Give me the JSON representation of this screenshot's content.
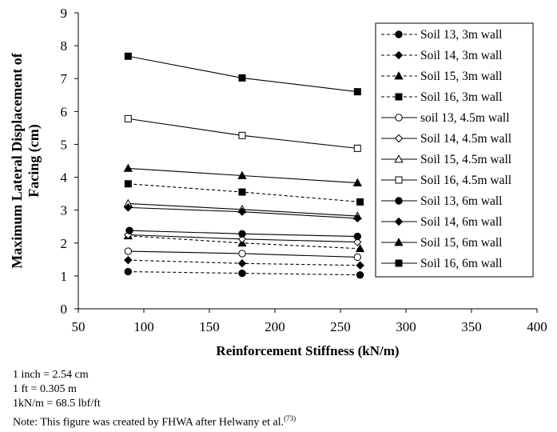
{
  "chart_data": {
    "type": "line",
    "xlabel": "Reinforcement Stiffness (kN/m)",
    "ylabel": "Maximum Lateral Displacement of Facing (cm)",
    "ylabel_line1": "Maximum Lateral Displacement of",
    "ylabel_line2": "Facing (cm)",
    "xlim": [
      50,
      400
    ],
    "ylim": [
      0,
      9
    ],
    "xticks": [
      50,
      100,
      150,
      200,
      250,
      300,
      350,
      400
    ],
    "yticks": [
      0,
      1,
      2,
      3,
      4,
      5,
      6,
      7,
      8,
      9
    ],
    "legend_position": "top-right",
    "series": [
      {
        "name": "Soil 13, 3m wall",
        "marker": "circle",
        "fill": true,
        "dash": true,
        "x": [
          88,
          175,
          265
        ],
        "y": [
          1.13,
          1.08,
          1.03
        ]
      },
      {
        "name": "Soil 14, 3m wall",
        "marker": "diamond",
        "fill": true,
        "dash": true,
        "x": [
          88,
          175,
          265
        ],
        "y": [
          1.48,
          1.38,
          1.32
        ]
      },
      {
        "name": "Soil 15, 3m wall",
        "marker": "triangle",
        "fill": true,
        "dash": true,
        "x": [
          88,
          175,
          265
        ],
        "y": [
          2.22,
          2.0,
          1.83
        ]
      },
      {
        "name": "Soil 16, 3m wall",
        "marker": "square",
        "fill": true,
        "dash": true,
        "x": [
          88,
          175,
          265
        ],
        "y": [
          3.8,
          3.55,
          3.25
        ]
      },
      {
        "name": "soil 13, 4.5m wall",
        "marker": "circle",
        "fill": false,
        "dash": false,
        "x": [
          88,
          175,
          263
        ],
        "y": [
          1.75,
          1.68,
          1.57
        ]
      },
      {
        "name": "Soil 14, 4.5m wall",
        "marker": "diamond",
        "fill": false,
        "dash": false,
        "x": [
          88,
          175,
          263
        ],
        "y": [
          2.25,
          2.12,
          2.03
        ]
      },
      {
        "name": "Soil 15, 4.5m wall",
        "marker": "triangle",
        "fill": false,
        "dash": false,
        "x": [
          88,
          175,
          263
        ],
        "y": [
          3.2,
          3.02,
          2.82
        ]
      },
      {
        "name": "Soil 16, 4.5m wall",
        "marker": "square",
        "fill": false,
        "dash": false,
        "x": [
          88,
          175,
          263
        ],
        "y": [
          5.78,
          5.27,
          4.88
        ]
      },
      {
        "name": "Soil 13, 6m wall",
        "marker": "circle",
        "fill": true,
        "dash": false,
        "x": [
          89,
          175,
          263
        ],
        "y": [
          2.38,
          2.28,
          2.2
        ]
      },
      {
        "name": "Soil 14, 6m wall",
        "marker": "diamond",
        "fill": true,
        "dash": false,
        "x": [
          88,
          175,
          263
        ],
        "y": [
          3.08,
          2.95,
          2.75
        ]
      },
      {
        "name": "Soil 15, 6m wall",
        "marker": "triangle",
        "fill": true,
        "dash": false,
        "x": [
          88,
          175,
          263
        ],
        "y": [
          4.27,
          4.05,
          3.83
        ]
      },
      {
        "name": "Soil 16, 6m wall",
        "marker": "square",
        "fill": true,
        "dash": false,
        "x": [
          88,
          175,
          263
        ],
        "y": [
          7.68,
          7.02,
          6.6
        ]
      }
    ]
  },
  "notes": {
    "line1": "1 inch = 2.54 cm",
    "line2": "1 ft = 0.305 m",
    "line3": "1kN/m = 68.5 lbf/ft",
    "line4": "Note: This figure was created by FHWA after Helwany et al.",
    "line4_ref": "(73)"
  }
}
